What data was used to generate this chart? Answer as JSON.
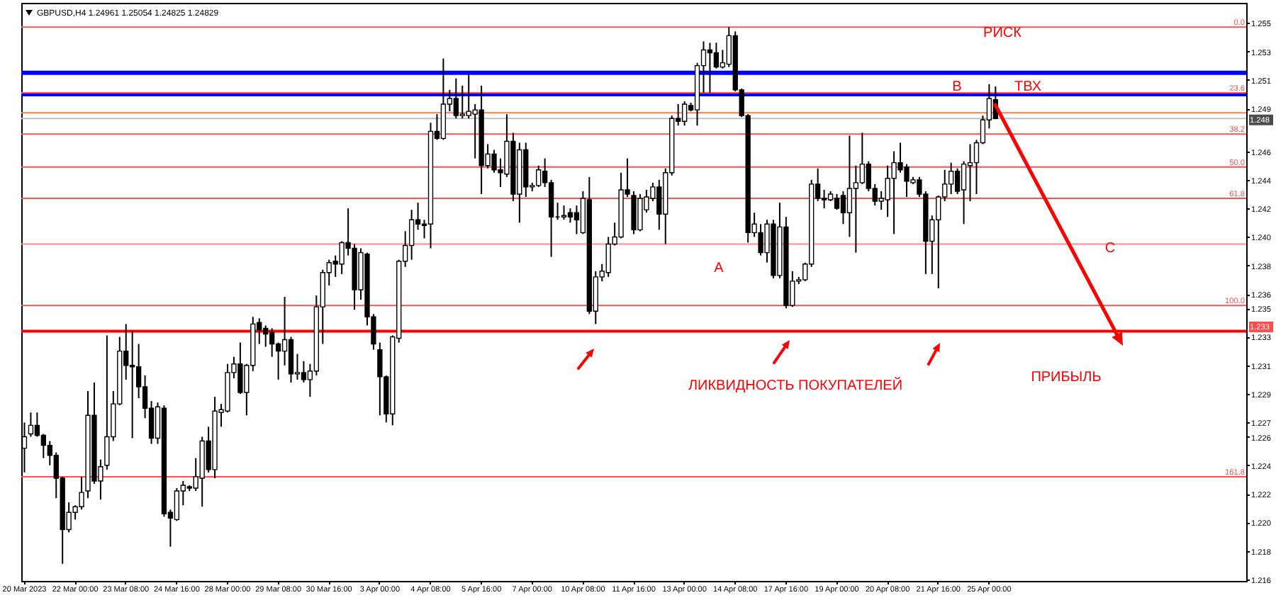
{
  "chart_data": {
    "type": "candlestick",
    "title": "GBPUSD,H4 1.24961 1.25054 1.24825 1.24829",
    "categories": [
      "20 Mar 2023",
      null,
      null,
      null,
      null,
      null,
      null,
      null,
      "22 Mar 00:00",
      null,
      null,
      null,
      null,
      null,
      null,
      null,
      "23 Mar 08:00",
      null,
      null,
      null,
      null,
      null,
      null,
      null,
      "24 Mar 16:00",
      null,
      null,
      null,
      null,
      null,
      null,
      null,
      "28 Mar 00:00",
      null,
      null,
      null,
      null,
      null,
      null,
      null,
      "29 Mar 08:00",
      null,
      null,
      null,
      null,
      null,
      null,
      null,
      "30 Mar 16:00",
      null,
      null,
      null,
      null,
      null,
      null,
      null,
      "3 Apr 00:00",
      null,
      null,
      null,
      null,
      null,
      null,
      null,
      "4 Apr 08:00",
      null,
      null,
      null,
      null,
      null,
      null,
      null,
      "5 Apr 16:00",
      null,
      null,
      null,
      null,
      null,
      null,
      null,
      "7 Apr 00:00",
      null,
      null,
      null,
      null,
      null,
      null,
      null,
      "10 Apr 08:00",
      null,
      null,
      null,
      null,
      null,
      null,
      null,
      "11 Apr 16:00",
      null,
      null,
      null,
      null,
      null,
      null,
      null,
      "13 Apr 00:00",
      null,
      null,
      null,
      null,
      null,
      null,
      null,
      "14 Apr 08:00",
      null,
      null,
      null,
      null,
      null,
      null,
      null,
      "17 Apr 16:00",
      null,
      null,
      null,
      null,
      null,
      null,
      null,
      "19 Apr 00:00",
      null,
      null,
      null,
      null,
      null,
      null,
      null,
      "20 Apr 08:00",
      null,
      null,
      null,
      null,
      null,
      null,
      null,
      "21 Apr 16:00",
      null,
      null,
      null,
      null,
      null,
      null,
      null,
      "25 Apr 00:00",
      null,
      null,
      null,
      null,
      null,
      null,
      null,
      null,
      null,
      null,
      null,
      null,
      null,
      null,
      null,
      null,
      null,
      null,
      null,
      null,
      null,
      null,
      null,
      null,
      null,
      null,
      null,
      null,
      null,
      null,
      null,
      null,
      null,
      null,
      null,
      null,
      null,
      null,
      null,
      null
    ],
    "ohlc": [
      [
        1.2252,
        1.227,
        1.2235,
        1.226
      ],
      [
        1.2262,
        1.2277,
        1.226,
        1.2268
      ],
      [
        1.2268,
        1.2277,
        1.226,
        1.2261
      ],
      [
        1.2261,
        1.2262,
        1.2245,
        1.2254
      ],
      [
        1.2254,
        1.2257,
        1.224,
        1.2247
      ],
      [
        1.2247,
        1.2249,
        1.2217,
        1.2231
      ],
      [
        1.2231,
        1.2232,
        1.2171,
        1.2195
      ],
      [
        1.2195,
        1.2214,
        1.2193,
        1.2207
      ],
      [
        1.2207,
        1.2212,
        1.2202,
        1.2211
      ],
      [
        1.2211,
        1.2232,
        1.2209,
        1.2221
      ],
      [
        1.2222,
        1.2292,
        1.2217,
        1.2275
      ],
      [
        1.2275,
        1.2298,
        1.2227,
        1.2229
      ],
      [
        1.2229,
        1.2244,
        1.2216,
        1.2239
      ],
      [
        1.224,
        1.2331,
        1.2237,
        1.226
      ],
      [
        1.226,
        1.2292,
        1.2257,
        1.2283
      ],
      [
        1.2283,
        1.233,
        1.2282,
        1.232
      ],
      [
        1.232,
        1.2339,
        1.23,
        1.231
      ],
      [
        1.231,
        1.2334,
        1.2259,
        1.2309
      ],
      [
        1.2309,
        1.2325,
        1.2287,
        1.2295
      ],
      [
        1.2295,
        1.2303,
        1.2273,
        1.228
      ],
      [
        1.228,
        1.2285,
        1.2255,
        1.2259
      ],
      [
        1.2259,
        1.2284,
        1.2255,
        1.2281
      ],
      [
        1.228,
        1.2282,
        1.2204,
        1.2206
      ],
      [
        1.2207,
        1.2209,
        1.2183,
        1.2203
      ],
      [
        1.2202,
        1.2224,
        1.2201,
        1.2222
      ],
      [
        1.2222,
        1.2229,
        1.2212,
        1.2226
      ],
      [
        1.2225,
        1.2226,
        1.2222,
        1.2224
      ],
      [
        1.2224,
        1.2245,
        1.2222,
        1.2232
      ],
      [
        1.2231,
        1.226,
        1.2211,
        1.2257
      ],
      [
        1.2257,
        1.2267,
        1.2235,
        1.2237
      ],
      [
        1.2237,
        1.2288,
        1.2231,
        1.2278
      ],
      [
        1.2277,
        1.2283,
        1.2267,
        1.2279
      ],
      [
        1.2278,
        1.2311,
        1.2277,
        1.2305
      ],
      [
        1.2305,
        1.2316,
        1.2301,
        1.2311
      ],
      [
        1.2311,
        1.2326,
        1.229,
        1.2291
      ],
      [
        1.2291,
        1.2311,
        1.2275,
        1.231
      ],
      [
        1.231,
        1.2344,
        1.2306,
        1.2339
      ],
      [
        1.234,
        1.2343,
        1.2325,
        1.2335
      ],
      [
        1.2336,
        1.2338,
        1.2323,
        1.2332
      ],
      [
        1.2333,
        1.2336,
        1.2316,
        1.2325
      ],
      [
        1.2325,
        1.2326,
        1.23,
        1.232
      ],
      [
        1.232,
        1.2358,
        1.231,
        1.2328
      ],
      [
        1.2328,
        1.233,
        1.2298,
        1.2304
      ],
      [
        1.2304,
        1.2318,
        1.23,
        1.2305
      ],
      [
        1.2305,
        1.2313,
        1.2298,
        1.23
      ],
      [
        1.23,
        1.2311,
        1.2288,
        1.2306
      ],
      [
        1.2306,
        1.2359,
        1.2303,
        1.2351
      ],
      [
        1.2351,
        1.2377,
        1.2325,
        1.2375
      ],
      [
        1.2375,
        1.2384,
        1.2366,
        1.2382
      ],
      [
        1.2383,
        1.2387,
        1.2372,
        1.2381
      ],
      [
        1.2381,
        1.2397,
        1.2374,
        1.2396
      ],
      [
        1.2396,
        1.242,
        1.2387,
        1.2392
      ],
      [
        1.2392,
        1.2395,
        1.2349,
        1.2363
      ],
      [
        1.2363,
        1.2392,
        1.2356,
        1.2389
      ],
      [
        1.2388,
        1.2389,
        1.2338,
        1.2344
      ],
      [
        1.2344,
        1.2346,
        1.2321,
        1.2325
      ],
      [
        1.2321,
        1.2326,
        1.2275,
        1.2302
      ],
      [
        1.2302,
        1.2303,
        1.227,
        1.2276
      ],
      [
        1.2276,
        1.2331,
        1.2268,
        1.233
      ],
      [
        1.2329,
        1.2384,
        1.2326,
        1.2383
      ],
      [
        1.2383,
        1.2404,
        1.2379,
        1.2394
      ],
      [
        1.2394,
        1.2419,
        1.2384,
        1.2412
      ],
      [
        1.2412,
        1.2424,
        1.2405,
        1.2409
      ],
      [
        1.2409,
        1.2412,
        1.2399,
        1.2408
      ],
      [
        1.2409,
        1.248,
        1.2392,
        1.2474
      ],
      [
        1.2474,
        1.2486,
        1.2468,
        1.2469
      ],
      [
        1.2469,
        1.2525,
        1.2468,
        1.2493
      ],
      [
        1.2493,
        1.2503,
        1.2488,
        1.2497
      ],
      [
        1.2497,
        1.2511,
        1.2483,
        1.2485
      ],
      [
        1.2485,
        1.2506,
        1.2483,
        1.2486
      ],
      [
        1.2485,
        1.2514,
        1.2483,
        1.2488
      ],
      [
        1.2486,
        1.2493,
        1.2455,
        1.2489
      ],
      [
        1.2489,
        1.2506,
        1.243,
        1.245
      ],
      [
        1.245,
        1.2465,
        1.2448,
        1.2458
      ],
      [
        1.2458,
        1.2461,
        1.2445,
        1.2447
      ],
      [
        1.2447,
        1.2455,
        1.2435,
        1.2445
      ],
      [
        1.2444,
        1.2486,
        1.2442,
        1.2467
      ],
      [
        1.2467,
        1.2473,
        1.2425,
        1.243
      ],
      [
        1.243,
        1.2466,
        1.241,
        1.2461
      ],
      [
        1.2461,
        1.2466,
        1.2428,
        1.2435
      ],
      [
        1.2435,
        1.2438,
        1.2432,
        1.2436
      ],
      [
        1.2436,
        1.245,
        1.2435,
        1.2447
      ],
      [
        1.2446,
        1.2455,
        1.2435,
        1.2438
      ],
      [
        1.2438,
        1.244,
        1.2386,
        1.2414
      ],
      [
        1.2414,
        1.2424,
        1.2412,
        1.2414
      ],
      [
        1.2414,
        1.2422,
        1.2412,
        1.2415
      ],
      [
        1.2417,
        1.242,
        1.241,
        1.2414
      ],
      [
        1.2417,
        1.2422,
        1.2402,
        1.2412
      ],
      [
        1.2403,
        1.2432,
        1.2402,
        1.2427
      ],
      [
        1.2426,
        1.2442,
        1.2346,
        1.2348
      ],
      [
        1.2348,
        1.2376,
        1.2339,
        1.2372
      ],
      [
        1.2372,
        1.2381,
        1.2369,
        1.2376
      ],
      [
        1.2375,
        1.24,
        1.2372,
        1.2395
      ],
      [
        1.2395,
        1.241,
        1.2394,
        1.24
      ],
      [
        1.24,
        1.2445,
        1.2399,
        1.2433
      ],
      [
        1.2433,
        1.2455,
        1.2428,
        1.243
      ],
      [
        1.2429,
        1.2432,
        1.2402,
        1.2405
      ],
      [
        1.2405,
        1.243,
        1.2404,
        1.2427
      ],
      [
        1.2419,
        1.2433,
        1.2417,
        1.2428
      ],
      [
        1.2427,
        1.2438,
        1.2425,
        1.2435
      ],
      [
        1.2435,
        1.244,
        1.2405,
        1.2416
      ],
      [
        1.2416,
        1.2448,
        1.2395,
        1.2445
      ],
      [
        1.2445,
        1.2485,
        1.2443,
        1.2483
      ],
      [
        1.2483,
        1.2493,
        1.2478,
        1.2481
      ],
      [
        1.2481,
        1.2495,
        1.2478,
        1.2493
      ],
      [
        1.2492,
        1.2494,
        1.2488,
        1.2489
      ],
      [
        1.2489,
        1.2522,
        1.2478,
        1.252
      ],
      [
        1.252,
        1.2537,
        1.2501,
        1.2531
      ],
      [
        1.2531,
        1.2536,
        1.2501,
        1.2529
      ],
      [
        1.2529,
        1.2536,
        1.2518,
        1.2519
      ],
      [
        1.2519,
        1.2531,
        1.2518,
        1.2522
      ],
      [
        1.2521,
        1.2547,
        1.2519,
        1.2541
      ],
      [
        1.2541,
        1.2544,
        1.2502,
        1.2503
      ],
      [
        1.2503,
        1.2504,
        1.2484,
        1.2485
      ],
      [
        1.2485,
        1.2486,
        1.2396,
        1.2403
      ],
      [
        1.2403,
        1.2417,
        1.24,
        1.2409
      ],
      [
        1.2403,
        1.2409,
        1.2387,
        1.2389
      ],
      [
        1.2389,
        1.2412,
        1.2382,
        1.2409
      ],
      [
        1.2409,
        1.2412,
        1.2371,
        1.2373
      ],
      [
        1.2373,
        1.2424,
        1.2371,
        1.2407
      ],
      [
        1.2407,
        1.2414,
        1.235,
        1.2352
      ],
      [
        1.2352,
        1.2376,
        1.2351,
        1.2369
      ],
      [
        1.2369,
        1.2372,
        1.2367,
        1.237
      ],
      [
        1.237,
        1.2382,
        1.2369,
        1.2381
      ],
      [
        1.2381,
        1.244,
        1.2379,
        1.2437
      ],
      [
        1.2437,
        1.2448,
        1.2425,
        1.2427
      ],
      [
        1.2427,
        1.2433,
        1.242,
        1.2426
      ],
      [
        1.2426,
        1.2432,
        1.2425,
        1.243
      ],
      [
        1.2427,
        1.243,
        1.2419,
        1.242
      ],
      [
        1.2429,
        1.2432,
        1.2409,
        1.2417
      ],
      [
        1.2417,
        1.2471,
        1.24,
        1.2434
      ],
      [
        1.2434,
        1.245,
        1.2389,
        1.2438
      ],
      [
        1.2438,
        1.2473,
        1.2437,
        1.2451
      ],
      [
        1.2451,
        1.2453,
        1.2432,
        1.2434
      ],
      [
        1.2434,
        1.2437,
        1.2422,
        1.2425
      ],
      [
        1.2425,
        1.2432,
        1.2419,
        1.2427
      ],
      [
        1.2426,
        1.245,
        1.2414,
        1.2441
      ],
      [
        1.2441,
        1.246,
        1.2402,
        1.2452
      ],
      [
        1.2452,
        1.2466,
        1.2445,
        1.2447
      ],
      [
        1.2449,
        1.2451,
        1.2428,
        1.2439
      ],
      [
        1.2438,
        1.2442,
        1.2437,
        1.244
      ],
      [
        1.244,
        1.2442,
        1.2428,
        1.243
      ],
      [
        1.243,
        1.2432,
        1.2374,
        1.2397
      ],
      [
        1.2397,
        1.2415,
        1.2374,
        1.2412
      ],
      [
        1.2412,
        1.2429,
        1.2364,
        1.2428
      ],
      [
        1.2428,
        1.2447,
        1.2425,
        1.2437
      ],
      [
        1.2437,
        1.2452,
        1.243,
        1.2446
      ],
      [
        1.2446,
        1.2448,
        1.243,
        1.2432
      ],
      [
        1.2433,
        1.2453,
        1.2409,
        1.2451
      ],
      [
        1.245,
        1.2465,
        1.2425,
        1.2452
      ],
      [
        1.2452,
        1.2468,
        1.243,
        1.2466
      ],
      [
        1.2466,
        1.2485,
        1.2465,
        1.2482
      ],
      [
        1.2482,
        1.2507,
        1.2476,
        1.2497
      ],
      [
        1.24961,
        1.25054,
        1.24825,
        1.24829
      ],
      null,
      null,
      null,
      null,
      null,
      null,
      null,
      null,
      null,
      null,
      null,
      null,
      null,
      null,
      null,
      null,
      null,
      null,
      null,
      null,
      null,
      null,
      null,
      null,
      null,
      null,
      null,
      null,
      null,
      null,
      null,
      null,
      null,
      null,
      null,
      null,
      null,
      null,
      null
    ],
    "color": "#000000",
    "ylim": [
      1.2159,
      1.2564
    ],
    "yticks": [
      1.255,
      1.253,
      1.251,
      1.249,
      1.246,
      1.244,
      1.242,
      {
        "value": 1.24,
        "label": "1.240"
      },
      1.238,
      1.236,
      1.235,
      1.233,
      1.231,
      1.229,
      1.227,
      1.226,
      1.224,
      1.222,
      {
        "value": 1.22,
        "label": "1.220"
      },
      1.218,
      1.216
    ],
    "grid": false,
    "ref_lines": [
      {
        "axis": "y",
        "value": 1.2515,
        "color": "#0000ff"
      },
      {
        "axis": "y",
        "value": 1.25,
        "color": "#0000ff"
      },
      {
        "axis": "y",
        "value": 1.2547,
        "color": "#ff5050"
      },
      {
        "axis": "y",
        "value": 1.2501,
        "color": "#ff5050"
      },
      {
        "axis": "y",
        "value": 1.2472,
        "color": "#ff5050"
      },
      {
        "axis": "y",
        "value": 1.2449,
        "color": "#ff5050"
      },
      {
        "axis": "y",
        "value": 1.2427,
        "color": "#ff5050"
      },
      {
        "axis": "y",
        "value": 1.2395,
        "color": "#ff8c8c"
      },
      {
        "axis": "y",
        "value": 1.2352,
        "color": "#ff5050"
      },
      {
        "axis": "y",
        "value": 1.2232,
        "color": "#ff5050"
      },
      {
        "axis": "y",
        "value": 1.2487,
        "color": "#f08050"
      },
      {
        "axis": "y",
        "value": 1.2483,
        "label": "1.248",
        "color": "#c0c0c0"
      },
      {
        "axis": "y",
        "value": 1.2334,
        "label": "1.233",
        "color": "#ff0000"
      }
    ],
    "annotations": [
      "РИСК",
      "ТВХ",
      "B",
      "A",
      "C",
      "ЛИКВИДНОСТЬ ПОКУПАТЕЛЕЙ",
      "ПРИБЫЛЬ",
      {
        "text": "0.0",
        "y": 1.2547
      },
      {
        "text": "23.6",
        "y": 1.2501
      },
      {
        "text": "38.2",
        "y": 1.2472
      },
      {
        "text": "50.0",
        "y": 1.2449
      },
      {
        "text": "61.8",
        "y": 1.2427
      },
      {
        "text": "100.0",
        "y": 1.2352
      },
      {
        "text": "161.8",
        "y": 1.2232
      }
    ]
  }
}
